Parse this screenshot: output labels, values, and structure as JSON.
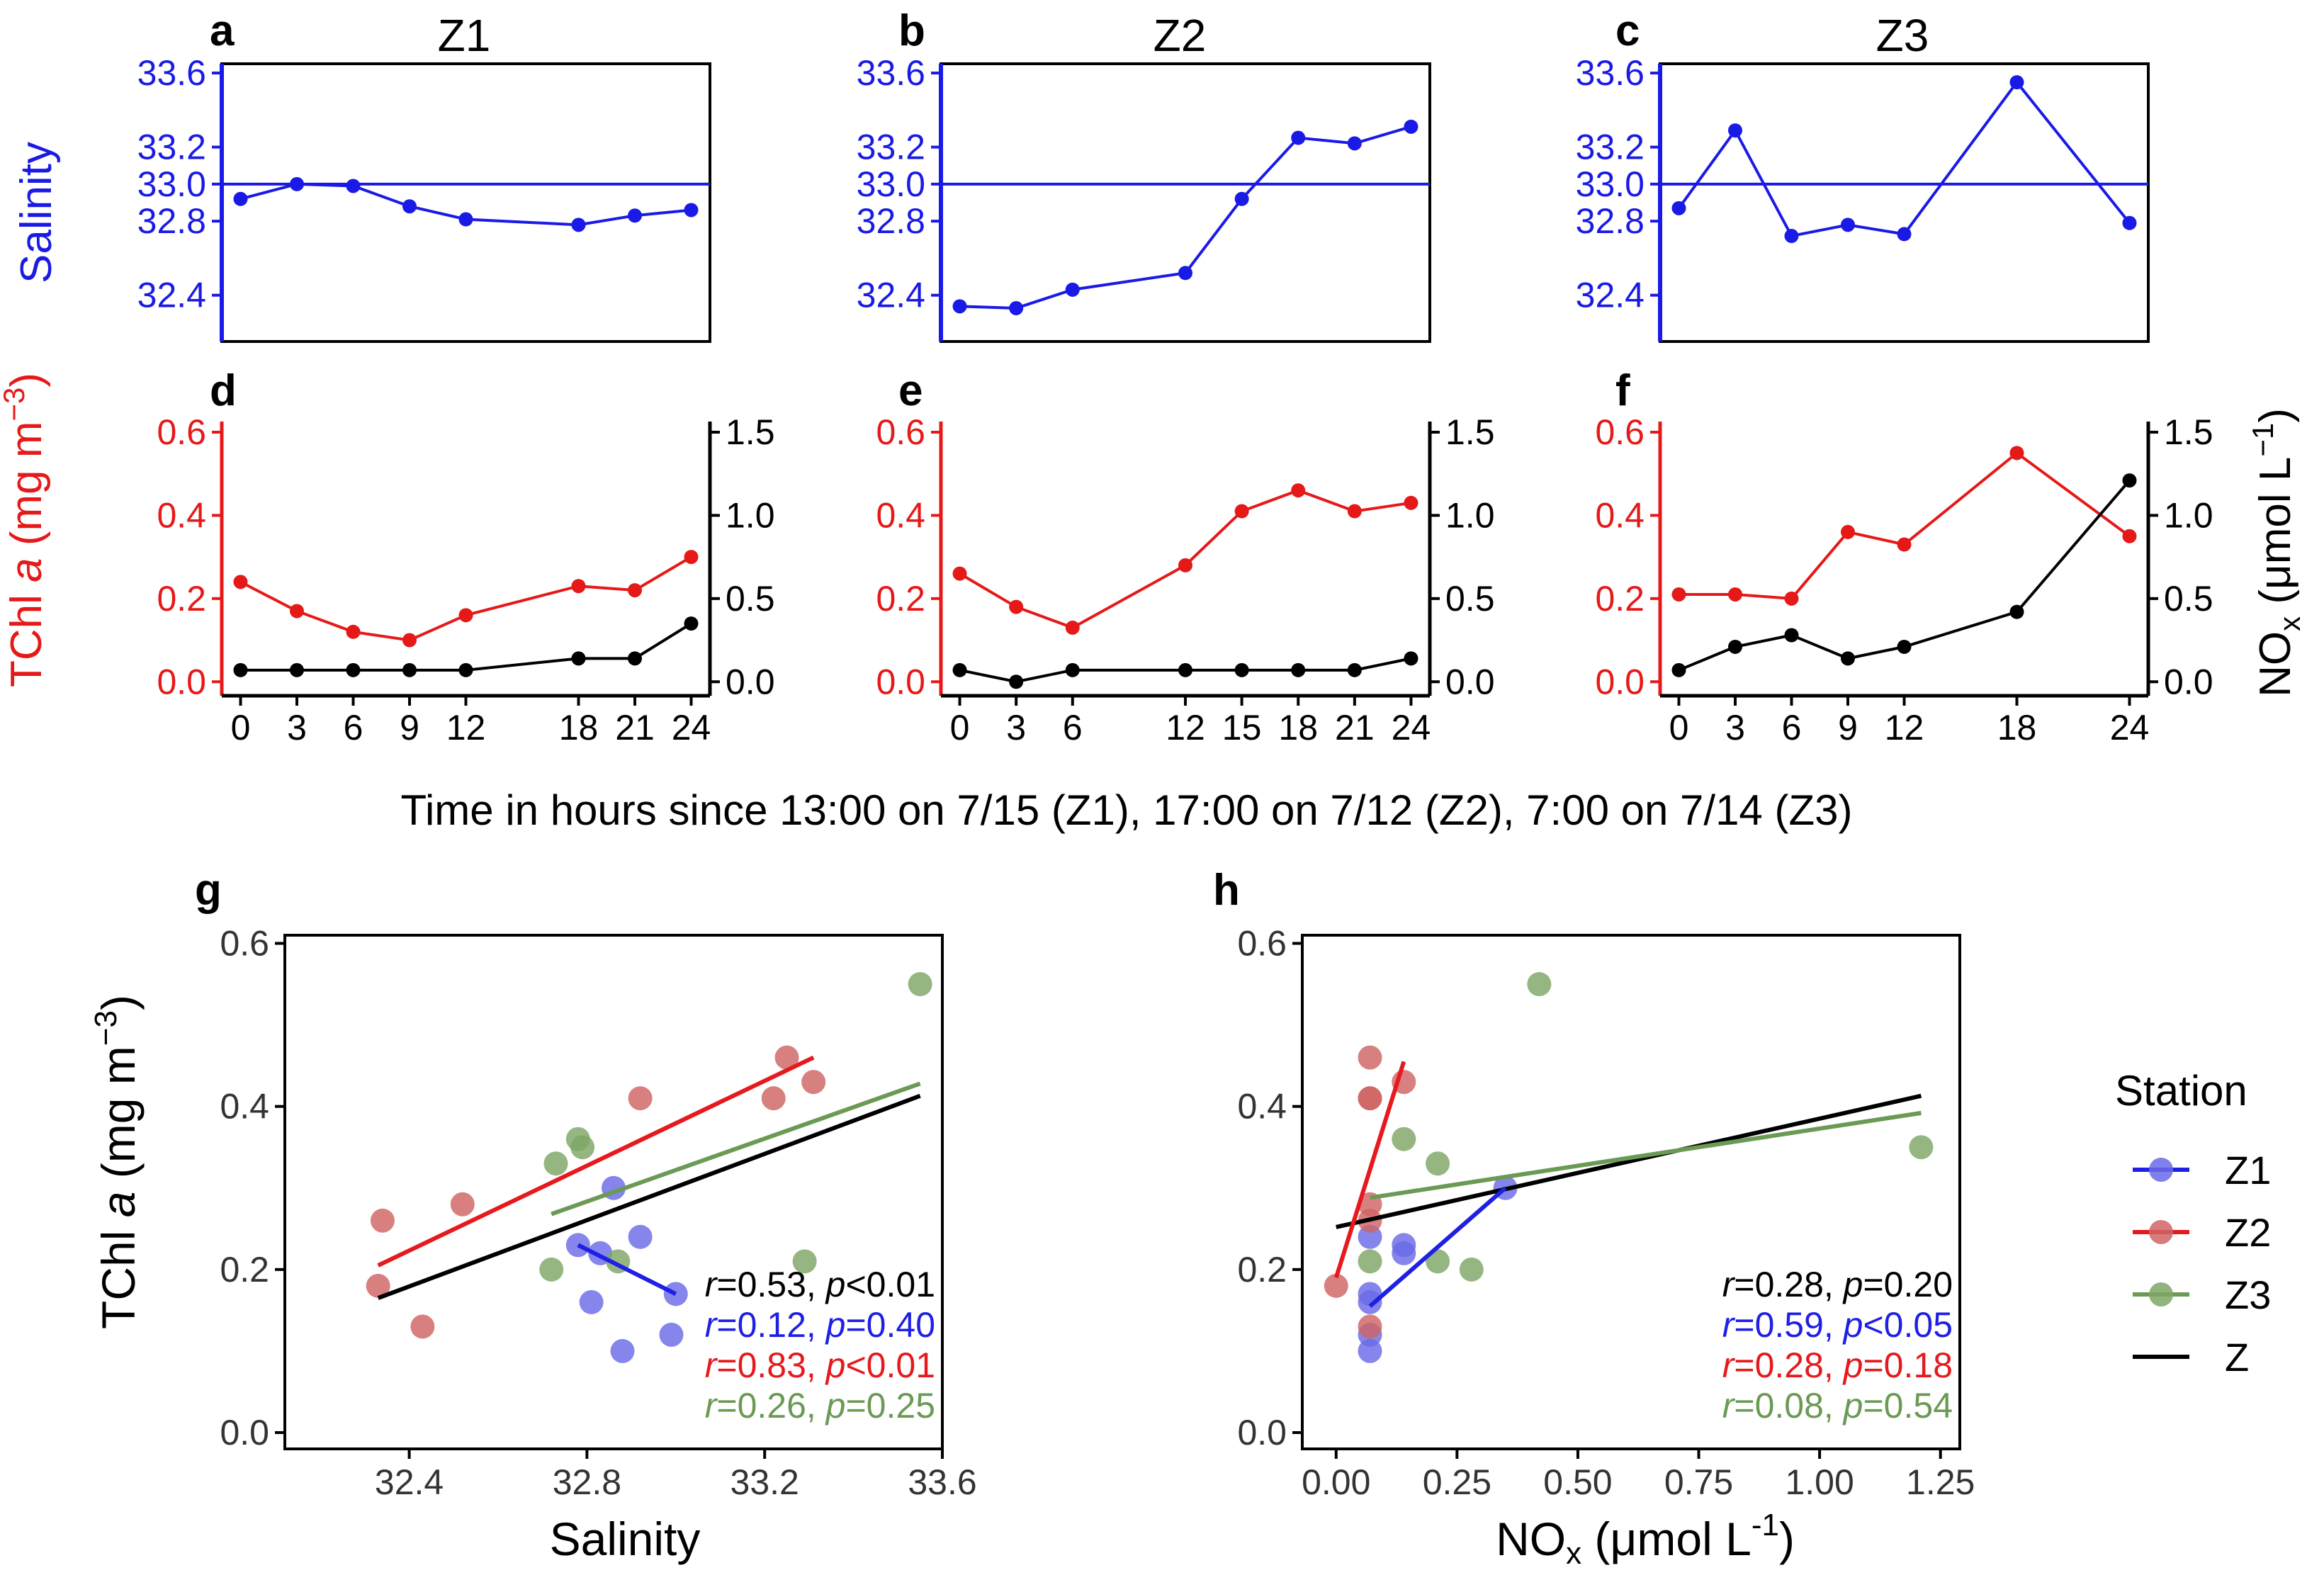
{
  "figure": {
    "common_xlabel": "Time in hours since 13:00 on 7/15 (Z1), 17:00 on 7/12 (Z2), 7:00 on 7/14 (Z3)",
    "colors": {
      "Z1": "#1f1fe6",
      "Z2": "#e6191e",
      "Z3": "#6b9a55",
      "salinity_axis": "#1a1ae6",
      "tchl_axis": "#e61919",
      "nox": "#000000",
      "Z1_scatter": "#6a6ae8",
      "Z2_scatter": "#d06464",
      "Z3_scatter": "#7ea665"
    },
    "top_axes": {
      "salinity_label": "Salinity",
      "tchl_label_prefix": "TChl ",
      "tchl_label_italic": "a",
      "tchl_label_unit": " (mg m",
      "tchl_label_exp": "−3",
      "nox_label_main": "NO",
      "nox_label_sub": "x",
      "nox_label_unit": " (μmol L",
      "nox_label_exp": "−1",
      "nox_label_close": ")"
    },
    "bottom_axes": {
      "ylabel_prefix": "TChl ",
      "ylabel_italic": "a",
      "ylabel_unit": " (mg m",
      "ylabel_exp": "−3",
      "g_xlabel": "Salinity",
      "h_xlabel_main": "NO",
      "h_xlabel_sub": "x",
      "h_xlabel_unit": " (μmol L",
      "h_xlabel_exp": "-1",
      "h_xlabel_close": ")"
    },
    "legend": {
      "title": "Station",
      "items": [
        {
          "label": "Z1",
          "color": "#1f1fe6"
        },
        {
          "label": "Z2",
          "color": "#e6191e"
        },
        {
          "label": "Z3",
          "color": "#6b9a55"
        },
        {
          "label": "Z",
          "color": "#000000"
        }
      ]
    }
  },
  "chart_data": [
    {
      "panel": "a",
      "title": "Z1",
      "type": "line",
      "series": [
        {
          "name": "Salinity",
          "x": [
            0,
            3,
            6,
            9,
            12,
            18,
            21,
            24
          ],
          "values": [
            32.92,
            33.0,
            32.99,
            32.88,
            32.81,
            32.78,
            32.83,
            32.86
          ]
        }
      ],
      "reference_line": 33.0,
      "ylim": [
        32.15,
        33.65
      ],
      "yticks": [
        "32.4",
        "32.8",
        "33.0",
        "33.2",
        "33.6"
      ],
      "xlim": [
        -1,
        25
      ]
    },
    {
      "panel": "b",
      "title": "Z2",
      "type": "line",
      "series": [
        {
          "name": "Salinity",
          "x": [
            0,
            3,
            6,
            12,
            15,
            18,
            21,
            24
          ],
          "values": [
            32.34,
            32.33,
            32.43,
            32.52,
            32.92,
            33.25,
            33.22,
            33.31
          ]
        }
      ],
      "reference_line": 33.0,
      "ylim": [
        32.15,
        33.65
      ],
      "yticks": [
        "32.4",
        "32.8",
        "33.0",
        "33.2",
        "33.6"
      ],
      "xlim": [
        -1,
        25
      ]
    },
    {
      "panel": "c",
      "title": "Z3",
      "type": "line",
      "series": [
        {
          "name": "Salinity",
          "x": [
            0,
            3,
            6,
            9,
            12,
            18,
            24
          ],
          "values": [
            32.87,
            33.29,
            32.72,
            32.78,
            32.73,
            33.55,
            32.79
          ]
        }
      ],
      "reference_line": 33.0,
      "ylim": [
        32.15,
        33.65
      ],
      "yticks": [
        "32.4",
        "32.8",
        "33.0",
        "33.2",
        "33.6"
      ],
      "xlim": [
        -1,
        25
      ]
    },
    {
      "panel": "d",
      "type": "line",
      "series": [
        {
          "name": "TChl a",
          "axis": "left",
          "x": [
            0,
            3,
            6,
            9,
            12,
            18,
            21,
            24
          ],
          "values": [
            0.24,
            0.17,
            0.12,
            0.1,
            0.16,
            0.23,
            0.22,
            0.3
          ]
        },
        {
          "name": "NOx",
          "axis": "right",
          "x": [
            0,
            3,
            6,
            9,
            12,
            18,
            21,
            24
          ],
          "values": [
            0.07,
            0.07,
            0.07,
            0.07,
            0.07,
            0.14,
            0.14,
            0.35
          ]
        }
      ],
      "xticks": [
        "0",
        "3",
        "6",
        "9",
        "12",
        "18",
        "21",
        "24"
      ],
      "ylim_left": [
        -0.02,
        0.6
      ],
      "yticks_left": [
        "0.0",
        "0.2",
        "0.4",
        "0.6"
      ],
      "ylim_right": [
        -0.05,
        1.5
      ],
      "yticks_right": [
        "0.0",
        "0.5",
        "1.0",
        "1.5"
      ],
      "xlim": [
        -1,
        25
      ]
    },
    {
      "panel": "e",
      "type": "line",
      "series": [
        {
          "name": "TChl a",
          "axis": "left",
          "x": [
            0,
            3,
            6,
            12,
            15,
            18,
            21,
            24
          ],
          "values": [
            0.26,
            0.18,
            0.13,
            0.28,
            0.41,
            0.46,
            0.41,
            0.43
          ]
        },
        {
          "name": "NOx",
          "axis": "right",
          "x": [
            0,
            3,
            6,
            12,
            15,
            18,
            21,
            24
          ],
          "values": [
            0.07,
            0.0,
            0.07,
            0.07,
            0.07,
            0.07,
            0.07,
            0.14
          ]
        }
      ],
      "xticks": [
        "0",
        "3",
        "6",
        "12",
        "15",
        "18",
        "21",
        "24"
      ],
      "ylim_left": [
        -0.02,
        0.6
      ],
      "yticks_left": [
        "0.0",
        "0.2",
        "0.4",
        "0.6"
      ],
      "ylim_right": [
        -0.05,
        1.5
      ],
      "yticks_right": [
        "0.0",
        "0.5",
        "1.0",
        "1.5"
      ],
      "xlim": [
        -1,
        25
      ]
    },
    {
      "panel": "f",
      "type": "line",
      "series": [
        {
          "name": "TChl a",
          "axis": "left",
          "x": [
            0,
            3,
            6,
            9,
            12,
            18,
            24
          ],
          "values": [
            0.21,
            0.21,
            0.2,
            0.36,
            0.33,
            0.55,
            0.35
          ]
        },
        {
          "name": "NOx",
          "axis": "right",
          "x": [
            0,
            3,
            6,
            9,
            12,
            18,
            24
          ],
          "values": [
            0.07,
            0.21,
            0.28,
            0.14,
            0.21,
            0.42,
            1.21
          ]
        }
      ],
      "xticks": [
        "0",
        "3",
        "6",
        "9",
        "12",
        "18",
        "24"
      ],
      "ylim_left": [
        -0.02,
        0.6
      ],
      "yticks_left": [
        "0.0",
        "0.2",
        "0.4",
        "0.6"
      ],
      "ylim_right": [
        -0.05,
        1.5
      ],
      "yticks_right": [
        "0.0",
        "0.5",
        "1.0",
        "1.5"
      ],
      "xlim": [
        -1,
        25
      ]
    },
    {
      "panel": "g",
      "type": "scatter",
      "xlabel": "Salinity",
      "xlim": [
        32.12,
        33.6
      ],
      "ylim": [
        -0.02,
        0.61
      ],
      "xticks": [
        "32.4",
        "32.8",
        "33.2",
        "33.6"
      ],
      "yticks": [
        "0.0",
        "0.2",
        "0.4",
        "0.6"
      ],
      "series": [
        {
          "name": "Z1",
          "x": [
            32.92,
            33.0,
            32.99,
            32.88,
            32.81,
            32.78,
            32.83,
            32.86
          ],
          "y": [
            0.24,
            0.17,
            0.12,
            0.1,
            0.16,
            0.23,
            0.22,
            0.3
          ]
        },
        {
          "name": "Z2",
          "x": [
            32.34,
            32.33,
            32.43,
            32.52,
            32.92,
            33.25,
            33.22,
            33.31
          ],
          "y": [
            0.26,
            0.18,
            0.13,
            0.28,
            0.41,
            0.46,
            0.41,
            0.43
          ]
        },
        {
          "name": "Z3",
          "x": [
            32.87,
            33.29,
            32.72,
            32.78,
            32.73,
            33.55,
            32.79
          ],
          "y": [
            0.21,
            0.21,
            0.2,
            0.36,
            0.33,
            0.55,
            0.35
          ]
        }
      ],
      "fits": [
        {
          "name": "Z",
          "x": [
            32.33,
            33.55
          ],
          "y": [
            0.165,
            0.413
          ]
        },
        {
          "name": "Z1",
          "x": [
            32.78,
            33.0
          ],
          "y": [
            0.23,
            0.17
          ]
        },
        {
          "name": "Z2",
          "x": [
            32.33,
            33.31
          ],
          "y": [
            0.205,
            0.46
          ]
        },
        {
          "name": "Z3",
          "x": [
            32.72,
            33.55
          ],
          "y": [
            0.268,
            0.428
          ]
        }
      ],
      "stats": [
        {
          "name": "Z",
          "r": "0.53",
          "p_op": "<",
          "p": "0.01"
        },
        {
          "name": "Z1",
          "r": "0.12",
          "p_op": "=",
          "p": "0.40"
        },
        {
          "name": "Z2",
          "r": "0.83",
          "p_op": "<",
          "p": "0.01"
        },
        {
          "name": "Z3",
          "r": "0.26",
          "p_op": "=",
          "p": "0.25"
        }
      ]
    },
    {
      "panel": "h",
      "type": "scatter",
      "xlabel": "NOx (μmol L-1)",
      "xlim": [
        -0.07,
        1.29
      ],
      "ylim": [
        -0.02,
        0.61
      ],
      "xticks": [
        "0.00",
        "0.25",
        "0.50",
        "0.75",
        "1.00",
        "1.25"
      ],
      "yticks": [
        "0.0",
        "0.2",
        "0.4",
        "0.6"
      ],
      "series": [
        {
          "name": "Z1",
          "x": [
            0.07,
            0.07,
            0.07,
            0.07,
            0.07,
            0.14,
            0.14,
            0.35
          ],
          "y": [
            0.24,
            0.17,
            0.12,
            0.1,
            0.16,
            0.23,
            0.22,
            0.3
          ]
        },
        {
          "name": "Z2",
          "x": [
            0.07,
            0.0,
            0.07,
            0.07,
            0.07,
            0.07,
            0.07,
            0.14
          ],
          "y": [
            0.26,
            0.18,
            0.13,
            0.28,
            0.41,
            0.46,
            0.41,
            0.43
          ]
        },
        {
          "name": "Z3",
          "x": [
            0.07,
            0.21,
            0.28,
            0.14,
            0.21,
            0.42,
            1.21
          ],
          "y": [
            0.21,
            0.21,
            0.2,
            0.36,
            0.33,
            0.55,
            0.35
          ]
        }
      ],
      "fits": [
        {
          "name": "Z",
          "x": [
            0.0,
            1.21
          ],
          "y": [
            0.252,
            0.413
          ]
        },
        {
          "name": "Z1",
          "x": [
            0.07,
            0.35
          ],
          "y": [
            0.155,
            0.3
          ]
        },
        {
          "name": "Z2",
          "x": [
            0.0,
            0.14
          ],
          "y": [
            0.19,
            0.455
          ]
        },
        {
          "name": "Z3",
          "x": [
            0.07,
            1.21
          ],
          "y": [
            0.288,
            0.392
          ]
        }
      ],
      "stats": [
        {
          "name": "Z",
          "r": "0.28",
          "p_op": "=",
          "p": "0.20"
        },
        {
          "name": "Z1",
          "r": "0.59",
          "p_op": "<",
          "p": "0.05"
        },
        {
          "name": "Z2",
          "r": "0.28",
          "p_op": "=",
          "p": "0.18"
        },
        {
          "name": "Z3",
          "r": "0.08",
          "p_op": "=",
          "p": "0.54"
        }
      ]
    }
  ]
}
